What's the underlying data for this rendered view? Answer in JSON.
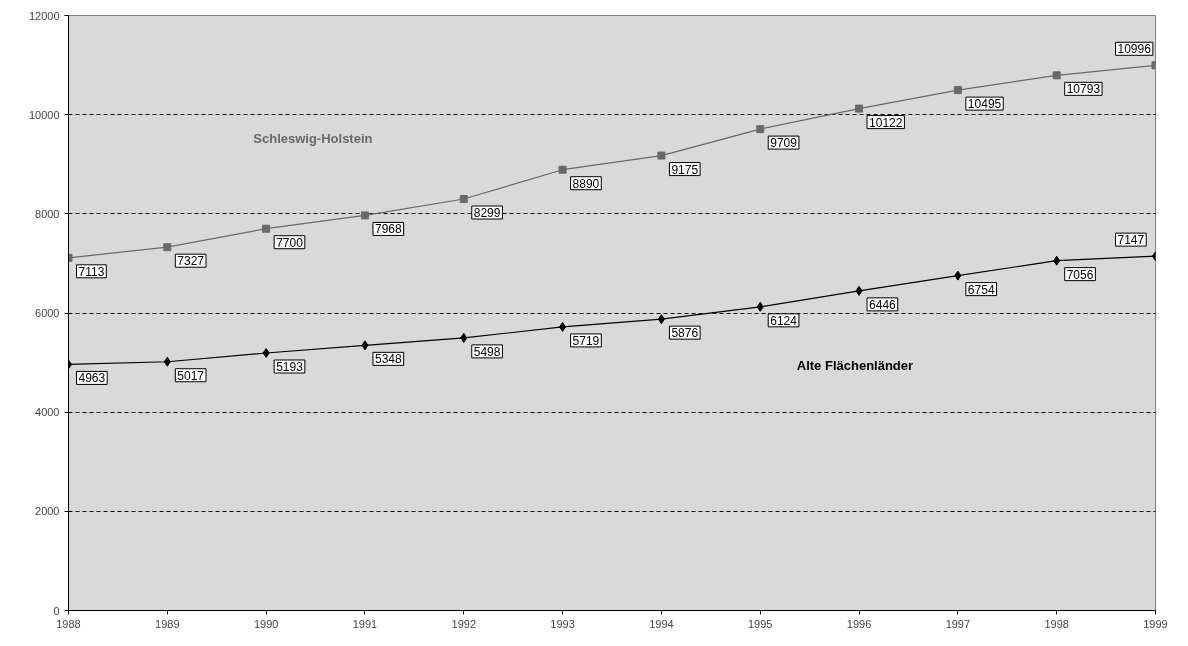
{
  "chart_data": {
    "type": "line",
    "x": [
      1988,
      1989,
      1990,
      1991,
      1992,
      1993,
      1994,
      1995,
      1996,
      1997,
      1998,
      1999
    ],
    "series": [
      {
        "name": "Schleswig-Holstein",
        "color": "#696969",
        "marker": "square",
        "values": [
          7113,
          7327,
          7700,
          7968,
          8299,
          8890,
          9175,
          9709,
          10122,
          10495,
          10793,
          10996
        ]
      },
      {
        "name": "Alte Flächenländer",
        "color": "#000000",
        "marker": "diamond",
        "values": [
          4963,
          5017,
          5193,
          5348,
          5498,
          5719,
          5876,
          6124,
          6446,
          6754,
          7056,
          7147
        ]
      }
    ],
    "xlim": [
      1988,
      1999
    ],
    "xticks": [
      1988,
      1989,
      1990,
      1991,
      1992,
      1993,
      1994,
      1995,
      1996,
      1997,
      1998,
      1999
    ],
    "ylim": [
      0,
      12000
    ],
    "yticks": [
      0,
      2000,
      4000,
      6000,
      8000,
      10000,
      12000
    ],
    "grid": "y",
    "data_labels": true,
    "line_style": "solid"
  }
}
